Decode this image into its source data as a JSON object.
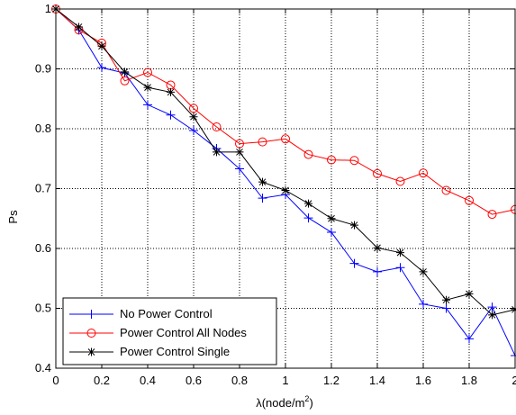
{
  "chart_data": {
    "type": "line",
    "xlabel": "λ(node/m",
    "xlabel_sup": "2",
    "xlabel_suffix": ")",
    "ylabel": "Ps",
    "xlim": [
      0,
      2
    ],
    "ylim": [
      0.4,
      1.0
    ],
    "grid": true,
    "legend_position": "bottom-left",
    "x_ticks": [
      0,
      0.2,
      0.4,
      0.6,
      0.8,
      1,
      1.2,
      1.4,
      1.6,
      1.8,
      2
    ],
    "x_tick_labels": [
      "0",
      "0.2",
      "0.4",
      "0.6",
      "0.8",
      "1",
      "1.2",
      "1.4",
      "1.6",
      "1.8",
      "2"
    ],
    "y_ticks": [
      0.4,
      0.5,
      0.6,
      0.7,
      0.8,
      0.9,
      1.0
    ],
    "y_tick_labels": [
      "0.4",
      "0.5",
      "0.6",
      "0.7",
      "0.8",
      "0.9",
      "1"
    ],
    "x": [
      0,
      0.1,
      0.2,
      0.3,
      0.4,
      0.5,
      0.6,
      0.7,
      0.8,
      0.9,
      1.0,
      1.1,
      1.2,
      1.3,
      1.4,
      1.5,
      1.6,
      1.7,
      1.8,
      1.9,
      2.0
    ],
    "series": [
      {
        "name": "No Power Control",
        "color": "#0000ff",
        "marker": "plus",
        "values": [
          1.0,
          0.965,
          0.902,
          0.893,
          0.84,
          0.823,
          0.797,
          0.767,
          0.733,
          0.684,
          0.69,
          0.651,
          0.627,
          0.575,
          0.561,
          0.568,
          0.507,
          0.5,
          0.449,
          0.502,
          0.421
        ]
      },
      {
        "name": "Power Control All Nodes",
        "color": "#ff0000",
        "marker": "circle",
        "values": [
          1.0,
          0.965,
          0.943,
          0.88,
          0.894,
          0.873,
          0.834,
          0.803,
          0.775,
          0.778,
          0.783,
          0.757,
          0.748,
          0.747,
          0.725,
          0.712,
          0.726,
          0.697,
          0.68,
          0.657,
          0.665
        ]
      },
      {
        "name": "Power Control Single",
        "color": "#000000",
        "marker": "star",
        "values": [
          1.0,
          0.97,
          0.938,
          0.895,
          0.869,
          0.861,
          0.82,
          0.761,
          0.761,
          0.711,
          0.697,
          0.675,
          0.65,
          0.639,
          0.601,
          0.593,
          0.561,
          0.514,
          0.524,
          0.489,
          0.498
        ]
      }
    ]
  }
}
